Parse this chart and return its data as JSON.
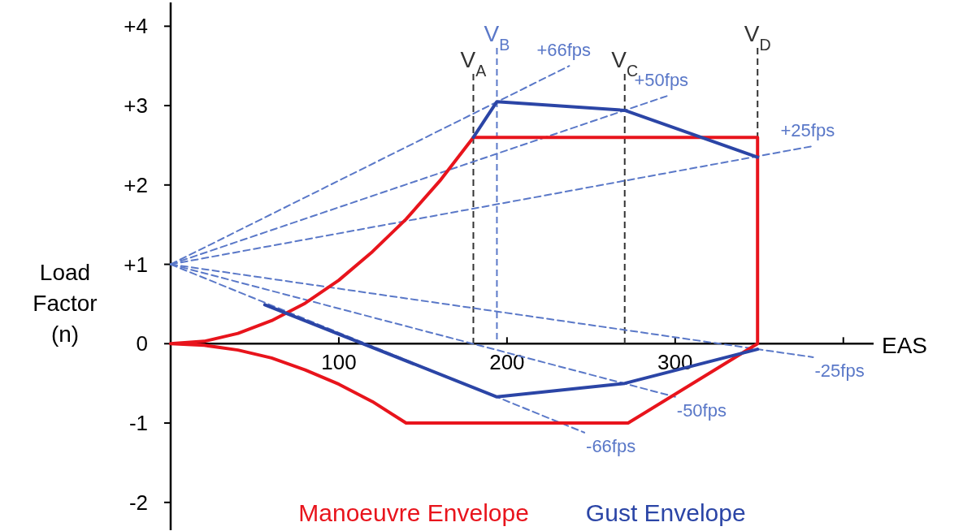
{
  "chart_data": {
    "type": "line",
    "xlabel": "EAS",
    "ylabel": "Load Factor (n)",
    "xlim": [
      0,
      418
    ],
    "ylim": [
      -2.35,
      4.3
    ],
    "xticks": [
      100,
      200,
      300,
      {
        "value": 400,
        "label": null
      }
    ],
    "yticks": [
      {
        "value": 4,
        "label": "+4"
      },
      {
        "value": 3,
        "label": "+3"
      },
      {
        "value": 2,
        "label": "+2"
      },
      {
        "value": 1,
        "label": "+1"
      },
      0,
      -1,
      -2
    ],
    "legend": "bottom",
    "grid": false,
    "marker": "none",
    "ref_lines": [
      {
        "axis": "x",
        "value": 180,
        "label": "V$_{A}$",
        "color": "#333333",
        "line_style": "dashed"
      },
      {
        "axis": "x",
        "value": 194,
        "label": "V$_{B}$",
        "color": "#5a78c8",
        "line_style": "dashed"
      },
      {
        "axis": "x",
        "value": 270,
        "label": "V$_{C}$",
        "color": "#333333",
        "line_style": "dashed"
      },
      {
        "axis": "x",
        "value": 349,
        "label": "V$_{D}$",
        "color": "#333333",
        "line_style": "dashed"
      }
    ],
    "series": [
      {
        "name": "+66fps",
        "color": "#5a78c8",
        "line_style": "dashed",
        "x": [
          0,
          237
        ],
        "values": [
          1,
          3.5
        ]
      },
      {
        "name": "+50fps",
        "color": "#5a78c8",
        "line_style": "dashed",
        "x": [
          0,
          295
        ],
        "values": [
          1,
          3.12
        ]
      },
      {
        "name": "+25fps",
        "color": "#5a78c8",
        "line_style": "dashed",
        "x": [
          0,
          382
        ],
        "values": [
          1,
          2.49
        ]
      },
      {
        "name": "-25fps",
        "color": "#5a78c8",
        "line_style": "dashed",
        "x": [
          0,
          382
        ],
        "values": [
          1,
          -0.17
        ]
      },
      {
        "name": "-50fps",
        "color": "#5a78c8",
        "line_style": "dashed",
        "x": [
          0,
          300
        ],
        "values": [
          1,
          -0.67
        ]
      },
      {
        "name": "-66fps",
        "color": "#5a78c8",
        "line_style": "dashed",
        "x": [
          0,
          246
        ],
        "values": [
          1,
          -1.12
        ]
      },
      {
        "name": "Manoeuvre Envelope",
        "color": "#e8141c",
        "line_style": "solid",
        "x": [
          0,
          20,
          40,
          60,
          80,
          100,
          120,
          140,
          160,
          180,
          349,
          349,
          null,
          0,
          20,
          40,
          60,
          80,
          100,
          120,
          140,
          272,
          349
        ],
        "values": [
          0,
          0.03,
          0.13,
          0.29,
          0.51,
          0.8,
          1.16,
          1.57,
          2.05,
          2.6,
          2.6,
          0,
          null,
          0,
          -0.02,
          -0.08,
          -0.18,
          -0.33,
          -0.51,
          -0.73,
          -1,
          -1,
          0
        ]
      },
      {
        "name": "Gust Envelope",
        "color": "#2b45a6",
        "line_style": "solid",
        "x": [
          180,
          194,
          270,
          349,
          null,
          56,
          194,
          270,
          349
        ],
        "values": [
          2.6,
          3.05,
          2.94,
          2.35,
          null,
          0.49,
          -0.67,
          -0.5,
          -0.07
        ]
      }
    ]
  }
}
